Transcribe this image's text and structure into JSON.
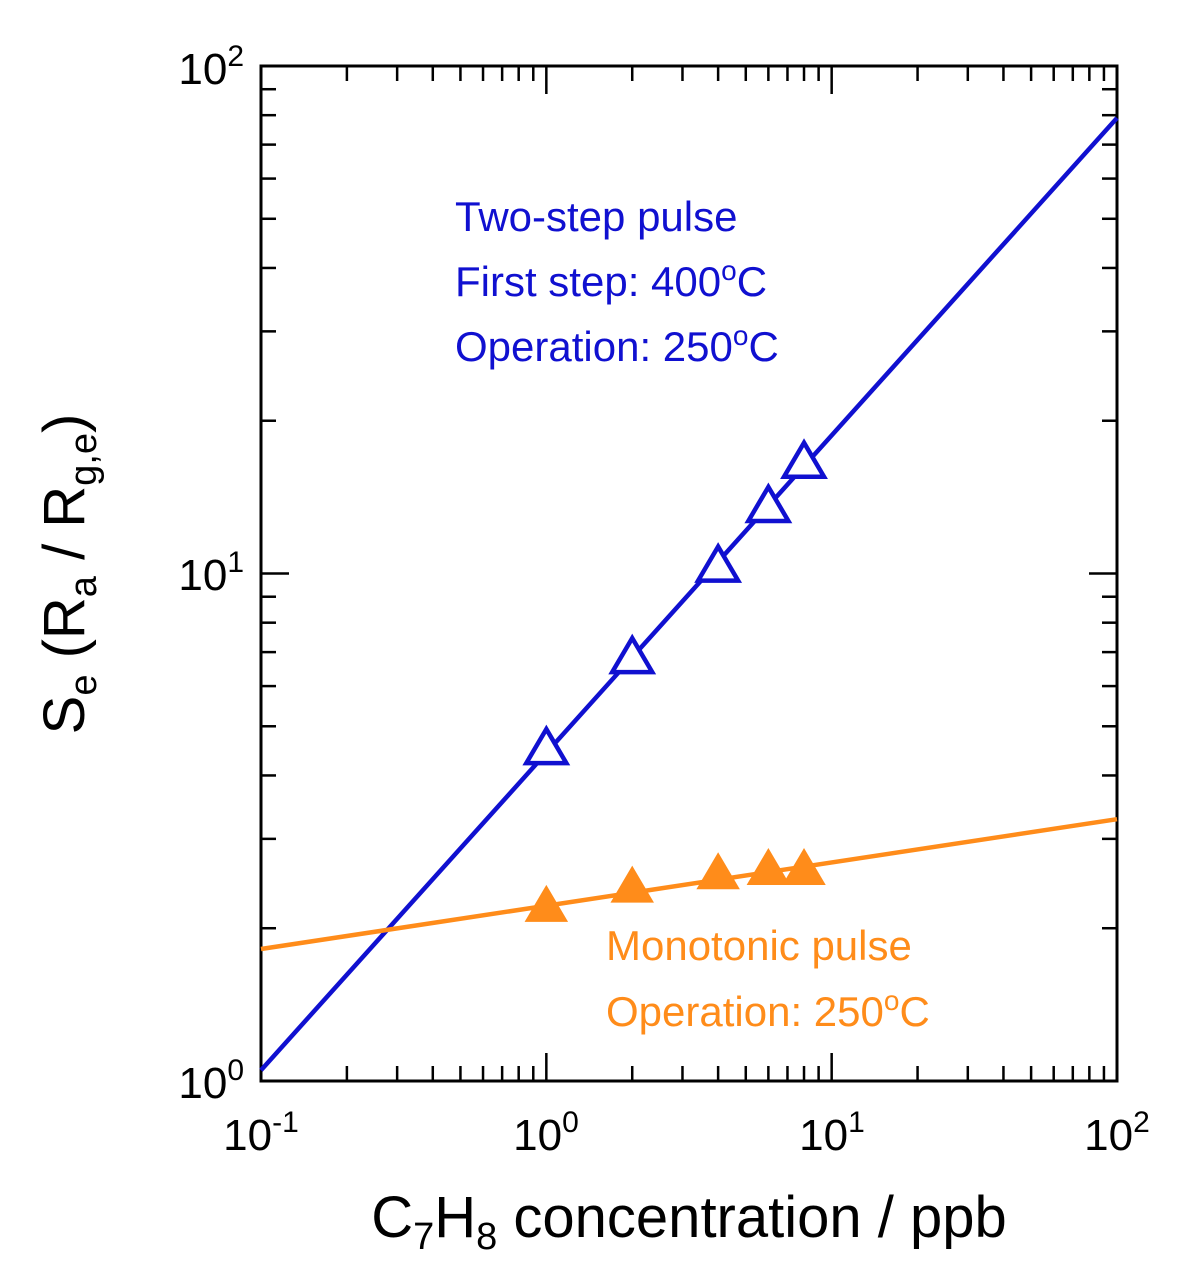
{
  "chart_data": {
    "type": "scatter",
    "x_scale": "log",
    "y_scale": "log",
    "xlim": [
      0.1,
      100
    ],
    "ylim": [
      1,
      100
    ],
    "x_ticks": [
      {
        "value": 0.1,
        "base": "10",
        "exp": "-1"
      },
      {
        "value": 1,
        "base": "10",
        "exp": "0"
      },
      {
        "value": 10,
        "base": "10",
        "exp": "1"
      },
      {
        "value": 100,
        "base": "10",
        "exp": "2"
      }
    ],
    "y_ticks": [
      {
        "value": 1,
        "base": "10",
        "exp": "0"
      },
      {
        "value": 10,
        "base": "10",
        "exp": "1"
      },
      {
        "value": 100,
        "base": "10",
        "exp": "2"
      }
    ],
    "xlabel": {
      "pre": "C",
      "sub1": "7",
      "mid": "H",
      "sub2": "8",
      "post": " concentration / ppb"
    },
    "ylabel": {
      "pre": "S",
      "sub1": "e",
      "mid": " (R",
      "sub2": "a",
      "mid2": " / R",
      "sub3": "g,e",
      "post": ")"
    },
    "grid": false,
    "series": [
      {
        "name": "Two-step pulse",
        "marker": "open-triangle",
        "color": "#1010d0",
        "x": [
          1,
          2,
          4,
          6,
          8
        ],
        "y": [
          4.5,
          6.8,
          10.3,
          13.5,
          16.5
        ],
        "fit_line": {
          "x": [
            0.1,
            100
          ],
          "y": [
            1.05,
            79
          ]
        },
        "annotation": [
          "Two-step pulse",
          "First step: 400",
          "o",
          "C",
          "Operation: 250",
          "o",
          "C"
        ]
      },
      {
        "name": "Monotonic pulse",
        "marker": "filled-triangle",
        "color": "#ff8c1a",
        "x": [
          1,
          2,
          4,
          6,
          8
        ],
        "y": [
          2.2,
          2.4,
          2.55,
          2.6,
          2.6
        ],
        "fit_line": {
          "x": [
            0.1,
            100
          ],
          "y": [
            1.82,
            3.28
          ]
        },
        "annotation": [
          "Monotonic pulse",
          "Operation: 250",
          "o",
          "C"
        ]
      }
    ]
  }
}
